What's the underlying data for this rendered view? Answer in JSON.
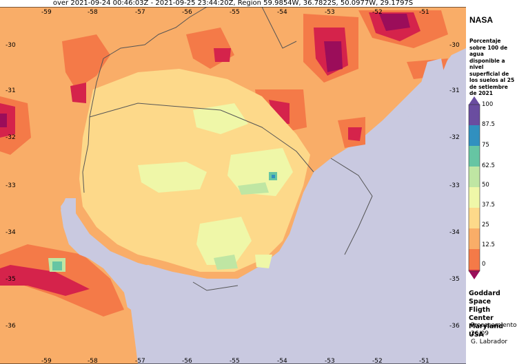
{
  "header": {
    "text": "over 2021-09-24 00:46:03Z - 2021-09-25 23:44:20Z, Region 59.9854W, 36.7822S, 50.0977W, 29.1797S"
  },
  "map": {
    "region": {
      "lon_min": -59.9854,
      "lon_max": -50.0977,
      "lat_min": -36.7822,
      "lat_max": -29.1797
    },
    "lon_ticks": [
      "-59",
      "-58",
      "-57",
      "-56",
      "-55",
      "-54",
      "-53",
      "-52",
      "-51"
    ],
    "lat_ticks": [
      "-30",
      "-31",
      "-32",
      "-33",
      "-34",
      "-35",
      "-36"
    ],
    "colors": {
      "ocean": "#c9c9e0",
      "c0": "#d5234b",
      "c12_5": "#f47a48",
      "c25": "#f9ad68",
      "c37_5": "#fdd98a",
      "c50": "#eff7a8",
      "c62_5": "#bfe6a3",
      "c75": "#66c5a3",
      "c87_5": "#3190bf",
      "c100": "#6a4da0",
      "extreme_low": "#9b0d5a",
      "border": "#555555"
    }
  },
  "legend": {
    "source": "NASA",
    "description": "Porcentaje sobre 100 de agua disponible a nivel superficial de los suelos al 25 de setiembre de 2021",
    "levels": [
      "100",
      "87.5",
      "75",
      "62.5",
      "50",
      "37.5",
      "25",
      "12.5",
      "0"
    ]
  },
  "credits": {
    "org_line1": "Goddard Space",
    "org_line2": "Fligth Center",
    "org_line3": "Maryland USA",
    "proc_line1": "Procesamiento",
    "proc_line2": "26/09",
    "proc_line3": "G. Labrador"
  }
}
